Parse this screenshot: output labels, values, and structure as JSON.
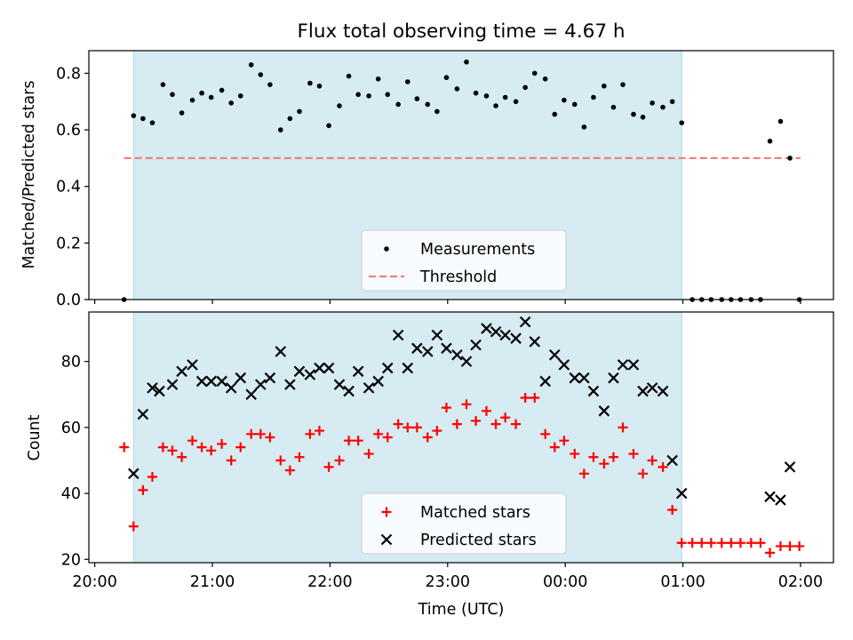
{
  "title": "Flux total observing time = 4.67 h",
  "xlabel": "Time (UTC)",
  "x_ticks": [
    "20:00",
    "21:00",
    "22:00",
    "23:00",
    "00:00",
    "01:00",
    "02:00"
  ],
  "colors": {
    "shade": "#add8e6",
    "measurement": "#000000",
    "threshold": "#f08080",
    "matched": "#ff0000",
    "predicted": "#000000"
  },
  "chart_data": [
    {
      "type": "scatter",
      "ylabel": "Matched/Predicted stars",
      "xlim": [
        -0.05,
        6.28
      ],
      "ylim": [
        0,
        0.88
      ],
      "y_ticks": [
        "0.0",
        "0.2",
        "0.4",
        "0.6",
        "0.8"
      ],
      "observing_window": [
        0.33,
        4.99
      ],
      "legend": {
        "placement": "lower center",
        "entries": [
          "Measurements",
          "Threshold"
        ]
      },
      "threshold": {
        "name": "Threshold",
        "value": 0.5,
        "x_range": [
          0.25,
          6.0
        ]
      },
      "series": [
        {
          "name": "Measurements",
          "points": [
            [
              0.25,
              0.0
            ],
            [
              0.33,
              0.65
            ],
            [
              0.41,
              0.64
            ],
            [
              0.49,
              0.625
            ],
            [
              0.58,
              0.76
            ],
            [
              0.66,
              0.725
            ],
            [
              0.74,
              0.66
            ],
            [
              0.83,
              0.705
            ],
            [
              0.91,
              0.73
            ],
            [
              0.99,
              0.715
            ],
            [
              1.08,
              0.74
            ],
            [
              1.16,
              0.695
            ],
            [
              1.24,
              0.72
            ],
            [
              1.33,
              0.83
            ],
            [
              1.41,
              0.795
            ],
            [
              1.49,
              0.76
            ],
            [
              1.58,
              0.6
            ],
            [
              1.66,
              0.64
            ],
            [
              1.74,
              0.665
            ],
            [
              1.83,
              0.765
            ],
            [
              1.91,
              0.755
            ],
            [
              1.99,
              0.615
            ],
            [
              2.08,
              0.685
            ],
            [
              2.16,
              0.79
            ],
            [
              2.24,
              0.725
            ],
            [
              2.33,
              0.72
            ],
            [
              2.41,
              0.78
            ],
            [
              2.49,
              0.725
            ],
            [
              2.58,
              0.69
            ],
            [
              2.66,
              0.77
            ],
            [
              2.74,
              0.71
            ],
            [
              2.83,
              0.69
            ],
            [
              2.91,
              0.665
            ],
            [
              2.99,
              0.785
            ],
            [
              3.08,
              0.745
            ],
            [
              3.16,
              0.84
            ],
            [
              3.24,
              0.73
            ],
            [
              3.33,
              0.72
            ],
            [
              3.41,
              0.685
            ],
            [
              3.49,
              0.715
            ],
            [
              3.58,
              0.7
            ],
            [
              3.66,
              0.75
            ],
            [
              3.74,
              0.8
            ],
            [
              3.83,
              0.78
            ],
            [
              3.91,
              0.655
            ],
            [
              3.99,
              0.705
            ],
            [
              4.08,
              0.69
            ],
            [
              4.16,
              0.61
            ],
            [
              4.24,
              0.715
            ],
            [
              4.33,
              0.755
            ],
            [
              4.41,
              0.68
            ],
            [
              4.49,
              0.76
            ],
            [
              4.58,
              0.655
            ],
            [
              4.66,
              0.645
            ],
            [
              4.74,
              0.695
            ],
            [
              4.83,
              0.68
            ],
            [
              4.91,
              0.7
            ],
            [
              4.99,
              0.625
            ],
            [
              5.08,
              0.0
            ],
            [
              5.16,
              0.0
            ],
            [
              5.24,
              0.0
            ],
            [
              5.33,
              0.0
            ],
            [
              5.41,
              0.0
            ],
            [
              5.49,
              0.0
            ],
            [
              5.58,
              0.0
            ],
            [
              5.66,
              0.0
            ],
            [
              5.74,
              0.56
            ],
            [
              5.83,
              0.63
            ],
            [
              5.91,
              0.5
            ],
            [
              5.99,
              0.0
            ]
          ]
        }
      ]
    },
    {
      "type": "scatter",
      "ylabel": "Count",
      "xlim": [
        -0.05,
        6.28
      ],
      "ylim": [
        19,
        95
      ],
      "y_ticks": [
        "20",
        "40",
        "60",
        "80"
      ],
      "observing_window": [
        0.33,
        4.99
      ],
      "legend": {
        "placement": "lower center",
        "entries": [
          "Matched stars",
          "Predicted stars"
        ]
      },
      "series": [
        {
          "name": "Matched stars",
          "marker": "+",
          "points": [
            [
              0.25,
              54
            ],
            [
              0.33,
              30
            ],
            [
              0.41,
              41
            ],
            [
              0.49,
              45
            ],
            [
              0.58,
              54
            ],
            [
              0.66,
              53
            ],
            [
              0.74,
              51
            ],
            [
              0.83,
              56
            ],
            [
              0.91,
              54
            ],
            [
              0.99,
              53
            ],
            [
              1.08,
              55
            ],
            [
              1.16,
              50
            ],
            [
              1.24,
              54
            ],
            [
              1.33,
              58
            ],
            [
              1.41,
              58
            ],
            [
              1.49,
              57
            ],
            [
              1.58,
              50
            ],
            [
              1.66,
              47
            ],
            [
              1.74,
              51
            ],
            [
              1.83,
              58
            ],
            [
              1.91,
              59
            ],
            [
              1.99,
              48
            ],
            [
              2.08,
              50
            ],
            [
              2.16,
              56
            ],
            [
              2.24,
              56
            ],
            [
              2.33,
              52
            ],
            [
              2.41,
              58
            ],
            [
              2.49,
              57
            ],
            [
              2.58,
              61
            ],
            [
              2.66,
              60
            ],
            [
              2.74,
              60
            ],
            [
              2.83,
              57
            ],
            [
              2.91,
              59
            ],
            [
              2.99,
              66
            ],
            [
              3.08,
              61
            ],
            [
              3.16,
              67
            ],
            [
              3.24,
              62
            ],
            [
              3.33,
              65
            ],
            [
              3.41,
              61
            ],
            [
              3.49,
              63
            ],
            [
              3.58,
              61
            ],
            [
              3.66,
              69
            ],
            [
              3.74,
              69
            ],
            [
              3.83,
              58
            ],
            [
              3.91,
              54
            ],
            [
              3.99,
              56
            ],
            [
              4.08,
              52
            ],
            [
              4.16,
              46
            ],
            [
              4.24,
              51
            ],
            [
              4.33,
              49
            ],
            [
              4.41,
              51
            ],
            [
              4.49,
              60
            ],
            [
              4.58,
              52
            ],
            [
              4.66,
              46
            ],
            [
              4.74,
              50
            ],
            [
              4.83,
              48
            ],
            [
              4.91,
              35
            ],
            [
              4.99,
              25
            ],
            [
              5.08,
              25
            ],
            [
              5.16,
              25
            ],
            [
              5.24,
              25
            ],
            [
              5.33,
              25
            ],
            [
              5.41,
              25
            ],
            [
              5.49,
              25
            ],
            [
              5.58,
              25
            ],
            [
              5.66,
              25
            ],
            [
              5.74,
              22
            ],
            [
              5.83,
              24
            ],
            [
              5.91,
              24
            ],
            [
              5.99,
              24
            ]
          ]
        },
        {
          "name": "Predicted stars",
          "marker": "x",
          "points": [
            [
              0.33,
              46
            ],
            [
              0.41,
              64
            ],
            [
              0.49,
              72
            ],
            [
              0.55,
              71
            ],
            [
              0.66,
              73
            ],
            [
              0.74,
              77
            ],
            [
              0.83,
              79
            ],
            [
              0.91,
              74
            ],
            [
              0.99,
              74
            ],
            [
              1.08,
              74
            ],
            [
              1.16,
              72
            ],
            [
              1.24,
              75
            ],
            [
              1.33,
              70
            ],
            [
              1.41,
              73
            ],
            [
              1.49,
              75
            ],
            [
              1.58,
              83
            ],
            [
              1.66,
              73
            ],
            [
              1.74,
              77
            ],
            [
              1.83,
              76
            ],
            [
              1.91,
              78
            ],
            [
              1.99,
              78
            ],
            [
              2.08,
              73
            ],
            [
              2.16,
              71
            ],
            [
              2.24,
              77
            ],
            [
              2.33,
              72
            ],
            [
              2.41,
              74
            ],
            [
              2.49,
              78
            ],
            [
              2.58,
              88
            ],
            [
              2.66,
              78
            ],
            [
              2.74,
              84
            ],
            [
              2.83,
              83
            ],
            [
              2.91,
              88
            ],
            [
              2.99,
              84
            ],
            [
              3.08,
              82
            ],
            [
              3.16,
              80
            ],
            [
              3.24,
              85
            ],
            [
              3.33,
              90
            ],
            [
              3.41,
              89
            ],
            [
              3.49,
              88
            ],
            [
              3.58,
              87
            ],
            [
              3.66,
              92
            ],
            [
              3.74,
              86
            ],
            [
              3.83,
              74
            ],
            [
              3.91,
              82
            ],
            [
              3.99,
              79
            ],
            [
              4.08,
              75
            ],
            [
              4.16,
              75
            ],
            [
              4.24,
              71
            ],
            [
              4.33,
              65
            ],
            [
              4.41,
              75
            ],
            [
              4.49,
              79
            ],
            [
              4.58,
              79
            ],
            [
              4.66,
              71
            ],
            [
              4.74,
              72
            ],
            [
              4.83,
              71
            ],
            [
              4.91,
              50
            ],
            [
              4.99,
              40
            ],
            [
              5.74,
              39
            ],
            [
              5.83,
              38
            ],
            [
              5.91,
              48
            ]
          ]
        }
      ]
    }
  ]
}
